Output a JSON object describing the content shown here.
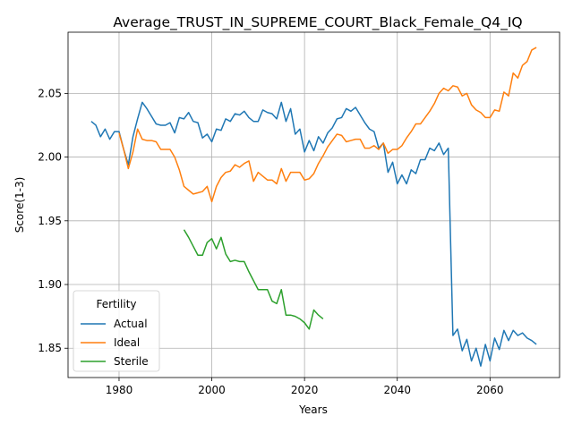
{
  "chart_data": {
    "type": "line",
    "title": "Average_TRUST_IN_SUPREME_COURT_Black_Female_Q4_IQ",
    "xlabel": "Years",
    "ylabel": "Score(1-3)",
    "xlim": [
      1969,
      2075
    ],
    "ylim": [
      1.827,
      2.098
    ],
    "xticks": [
      1980,
      2000,
      2020,
      2040,
      2060
    ],
    "yticks": [
      1.85,
      1.9,
      1.95,
      2.0,
      2.05
    ],
    "ytick_labels": [
      "1.85",
      "1.90",
      "1.95",
      "2.00",
      "2.05"
    ],
    "grid": true,
    "legend": {
      "title": "Fertility",
      "position": "lower-left"
    },
    "series": [
      {
        "name": "Actual",
        "color": "#1f77b4",
        "x": [
          1974,
          1975,
          1976,
          1977,
          1978,
          1979,
          1980,
          1981,
          1982,
          1983,
          1984,
          1985,
          1986,
          1987,
          1988,
          1989,
          1990,
          1991,
          1992,
          1993,
          1994,
          1995,
          1996,
          1997,
          1998,
          1999,
          2000,
          2001,
          2002,
          2003,
          2004,
          2005,
          2006,
          2007,
          2008,
          2009,
          2010,
          2011,
          2012,
          2013,
          2014,
          2015,
          2016,
          2017,
          2018,
          2019,
          2020,
          2021,
          2022,
          2023,
          2024,
          2025,
          2026,
          2027,
          2028,
          2029,
          2030,
          2031,
          2032,
          2033,
          2034,
          2035,
          2036,
          2037,
          2038,
          2039,
          2040,
          2041,
          2042,
          2043,
          2044,
          2045,
          2046,
          2047,
          2048,
          2049,
          2050,
          2051,
          2052,
          2053,
          2054,
          2055,
          2056,
          2057,
          2058,
          2059,
          2060,
          2061,
          2062,
          2063,
          2064,
          2065,
          2066,
          2067,
          2068,
          2069,
          2070
        ],
        "values": [
          2.028,
          2.025,
          2.016,
          2.022,
          2.014,
          2.02,
          2.02,
          2.006,
          1.994,
          2.016,
          2.03,
          2.043,
          2.038,
          2.032,
          2.026,
          2.025,
          2.025,
          2.027,
          2.019,
          2.031,
          2.03,
          2.035,
          2.028,
          2.027,
          2.015,
          2.018,
          2.012,
          2.022,
          2.021,
          2.03,
          2.028,
          2.034,
          2.033,
          2.036,
          2.031,
          2.028,
          2.028,
          2.037,
          2.035,
          2.034,
          2.03,
          2.043,
          2.028,
          2.038,
          2.018,
          2.022,
          2.004,
          2.013,
          2.005,
          2.016,
          2.011,
          2.019,
          2.023,
          2.03,
          2.031,
          2.038,
          2.036,
          2.039,
          2.033,
          2.027,
          2.022,
          2.02,
          2.007,
          2.011,
          1.988,
          1.996,
          1.979,
          1.986,
          1.979,
          1.99,
          1.987,
          1.998,
          1.998,
          2.007,
          2.005,
          2.011,
          2.002,
          2.007,
          1.86,
          1.865,
          1.848,
          1.857,
          1.84,
          1.85,
          1.836,
          1.853,
          1.84,
          1.858,
          1.849,
          1.864,
          1.856,
          1.864,
          1.86,
          1.862,
          1.858,
          1.856,
          1.853
        ]
      },
      {
        "name": "Ideal",
        "color": "#ff7f0e",
        "x": [
          1980,
          1981,
          1982,
          1983,
          1984,
          1985,
          1986,
          1987,
          1988,
          1989,
          1990,
          1991,
          1992,
          1993,
          1994,
          1995,
          1996,
          1997,
          1998,
          1999,
          2000,
          2001,
          2002,
          2003,
          2004,
          2005,
          2006,
          2007,
          2008,
          2009,
          2010,
          2011,
          2012,
          2013,
          2014,
          2015,
          2016,
          2017,
          2018,
          2019,
          2020,
          2021,
          2022,
          2023,
          2024,
          2025,
          2026,
          2027,
          2028,
          2029,
          2030,
          2031,
          2032,
          2033,
          2034,
          2035,
          2036,
          2037,
          2038,
          2039,
          2040,
          2041,
          2042,
          2043,
          2044,
          2045,
          2046,
          2047,
          2048,
          2049,
          2050,
          2051,
          2052,
          2053,
          2054,
          2055,
          2056,
          2057,
          2058,
          2059,
          2060,
          2061,
          2062,
          2063,
          2064,
          2065,
          2066,
          2067,
          2068,
          2069,
          2070
        ],
        "values": [
          2.019,
          2.006,
          1.991,
          2.004,
          2.022,
          2.014,
          2.013,
          2.013,
          2.012,
          2.006,
          2.006,
          2.006,
          2.0,
          1.99,
          1.977,
          1.974,
          1.971,
          1.972,
          1.973,
          1.977,
          1.965,
          1.977,
          1.984,
          1.988,
          1.989,
          1.994,
          1.992,
          1.995,
          1.997,
          1.981,
          1.988,
          1.985,
          1.982,
          1.982,
          1.979,
          1.991,
          1.981,
          1.988,
          1.988,
          1.988,
          1.982,
          1.983,
          1.987,
          1.995,
          2.001,
          2.008,
          2.013,
          2.018,
          2.017,
          2.012,
          2.013,
          2.014,
          2.014,
          2.007,
          2.007,
          2.009,
          2.006,
          2.011,
          2.003,
          2.006,
          2.006,
          2.009,
          2.015,
          2.02,
          2.026,
          2.026,
          2.031,
          2.036,
          2.042,
          2.05,
          2.054,
          2.052,
          2.056,
          2.055,
          2.048,
          2.05,
          2.041,
          2.037,
          2.035,
          2.031,
          2.031,
          2.037,
          2.036,
          2.051,
          2.048,
          2.066,
          2.062,
          2.072,
          2.075,
          2.084,
          2.086
        ]
      },
      {
        "name": "Sterile",
        "color": "#2ca02c",
        "x": [
          1994,
          1995,
          1996,
          1997,
          1998,
          1999,
          2000,
          2001,
          2002,
          2003,
          2004,
          2005,
          2006,
          2007,
          2008,
          2009,
          2010,
          2011,
          2012,
          2013,
          2014,
          2015,
          2016,
          2017,
          2018,
          2019,
          2020,
          2021,
          2022,
          2023,
          2024
        ],
        "values": [
          1.943,
          1.937,
          1.93,
          1.923,
          1.923,
          1.933,
          1.936,
          1.928,
          1.937,
          1.924,
          1.918,
          1.919,
          1.918,
          1.918,
          1.91,
          1.903,
          1.896,
          1.896,
          1.896,
          1.887,
          1.885,
          1.896,
          1.876,
          1.876,
          1.875,
          1.873,
          1.87,
          1.865,
          1.88,
          1.876,
          1.873
        ]
      }
    ]
  }
}
